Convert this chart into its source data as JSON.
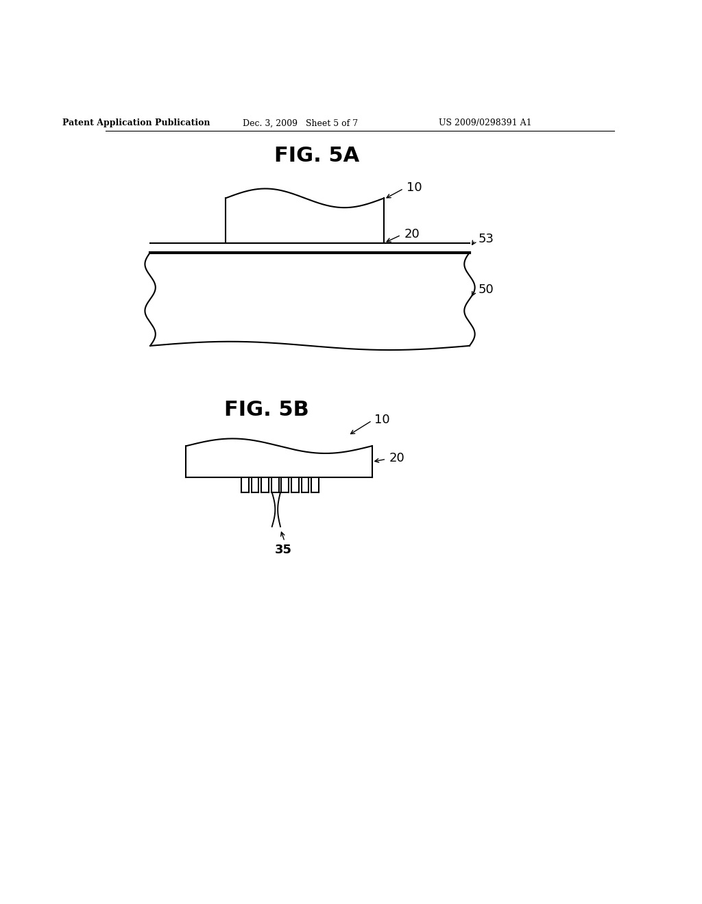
{
  "bg_color": "#ffffff",
  "header_left": "Patent Application Publication",
  "header_mid": "Dec. 3, 2009   Sheet 5 of 7",
  "header_right": "US 2009/0298391 A1",
  "fig5a_title": "FIG. 5A",
  "fig5b_title": "FIG. 5B",
  "line_color": "#000000",
  "line_width": 1.5,
  "label_fontsize": 13,
  "title_fontsize": 22
}
